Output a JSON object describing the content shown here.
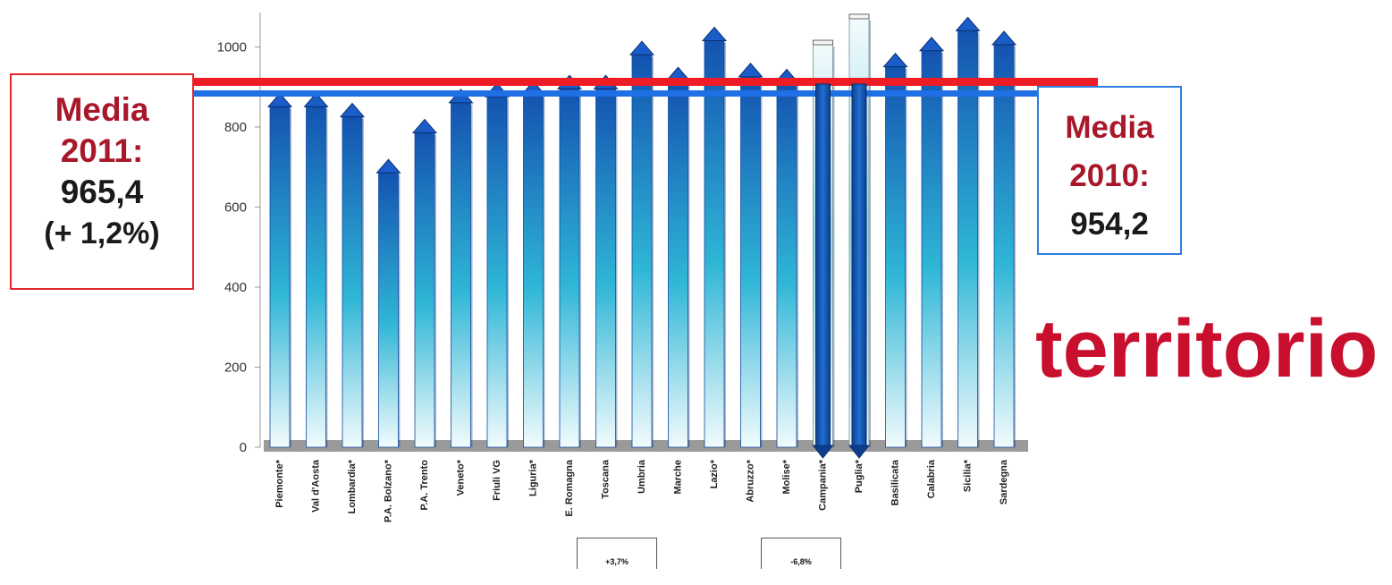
{
  "chart_data": {
    "type": "bar",
    "categories": [
      "Piemonte*",
      "Val d'Aosta",
      "Lombardia*",
      "P.A. Bolzano*",
      "P.A. Trento",
      "Veneto*",
      "Friuli VG",
      "Liguria*",
      "E. Romagna",
      "Toscana",
      "Umbria",
      "Marche",
      "Lazio*",
      "Abruzzo*",
      "Molise*",
      "Campania*",
      "Puglia*",
      "Basilicata",
      "Calabria",
      "Sicilia*",
      "Sardegna"
    ],
    "values": [
      855,
      855,
      830,
      690,
      790,
      865,
      880,
      885,
      900,
      900,
      985,
      920,
      1020,
      930,
      915,
      1010,
      1075,
      955,
      995,
      1045,
      1010
    ],
    "highlight_categories": [
      "Campania*",
      "Puglia*"
    ],
    "title": "",
    "xlabel": "",
    "ylabel": "",
    "ylim": [
      0,
      1090
    ],
    "yticks": [
      0,
      200,
      400,
      600,
      800,
      1000
    ],
    "reference_lines": [
      {
        "label": "Media 2011",
        "value": 965.4,
        "color": "#ee1c24"
      },
      {
        "label": "Media 2010",
        "value": 954.2,
        "color": "#1f6fe5"
      }
    ]
  },
  "annotations": {
    "media_2011": {
      "line1": "Media",
      "line2": "2011:",
      "line3": "965,4",
      "line4": "(+ 1,2%)"
    },
    "media_2010": {
      "line1": "Media",
      "line2": "2010:",
      "line3": "954,2"
    },
    "pct_1": "+3,7%",
    "pct_2": "-6,8%"
  },
  "watermark_text": "territorio",
  "colors": {
    "bar_dark": "#1352b0",
    "bar_mid": "#2fb6d6",
    "bar_light": "#eaf8fc",
    "line_2011": "#ee1c24",
    "line_2010": "#1f6fe5",
    "title_red": "#c8102e"
  }
}
